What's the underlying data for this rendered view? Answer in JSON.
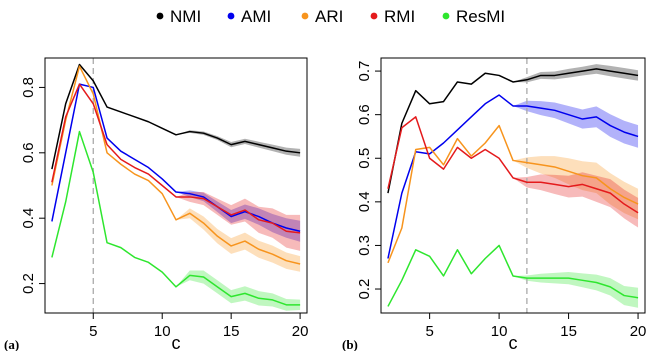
{
  "legend": {
    "items": [
      {
        "label": "NMI",
        "color": "#000000"
      },
      {
        "label": "AMI",
        "color": "#0000ee"
      },
      {
        "label": "ARI",
        "color": "#f7941d"
      },
      {
        "label": "RMI",
        "color": "#e41a1c"
      },
      {
        "label": "ResMI",
        "color": "#2ee62e"
      }
    ]
  },
  "chart_data": [
    {
      "type": "line",
      "panel_label": "(a)",
      "xlabel": "c",
      "x": [
        2,
        3,
        4,
        5,
        6,
        7,
        8,
        9,
        10,
        11,
        12,
        13,
        14,
        15,
        16,
        17,
        18,
        19,
        20
      ],
      "xticks": [
        5,
        10,
        15,
        20
      ],
      "yticks": [
        0.2,
        0.4,
        0.6,
        0.8
      ],
      "xlim": [
        1.5,
        20.5
      ],
      "ylim": [
        0.11,
        0.89
      ],
      "vline": 5,
      "grid": false,
      "legend_position": "top",
      "series": [
        {
          "name": "NMI",
          "color": "#000000",
          "values": [
            0.55,
            0.75,
            0.87,
            0.82,
            0.74,
            0.725,
            0.71,
            0.695,
            0.675,
            0.655,
            0.665,
            0.66,
            0.645,
            0.625,
            0.635,
            0.625,
            0.615,
            0.605,
            0.6
          ],
          "band": [
            0,
            0,
            0,
            0,
            0,
            0,
            0,
            0,
            0,
            0,
            0.004,
            0.005,
            0.006,
            0.008,
            0.008,
            0.009,
            0.01,
            0.011,
            0.012
          ]
        },
        {
          "name": "AMI",
          "color": "#0000ee",
          "values": [
            0.39,
            0.6,
            0.81,
            0.8,
            0.645,
            0.605,
            0.58,
            0.555,
            0.52,
            0.48,
            0.475,
            0.465,
            0.435,
            0.405,
            0.42,
            0.405,
            0.385,
            0.37,
            0.36
          ],
          "band": [
            0,
            0,
            0,
            0,
            0,
            0,
            0,
            0,
            0,
            0,
            0.01,
            0.013,
            0.016,
            0.02,
            0.022,
            0.025,
            0.028,
            0.03,
            0.032
          ]
        },
        {
          "name": "ARI",
          "color": "#f7941d",
          "values": [
            0.5,
            0.7,
            0.865,
            0.78,
            0.6,
            0.565,
            0.535,
            0.515,
            0.475,
            0.395,
            0.415,
            0.385,
            0.345,
            0.315,
            0.33,
            0.305,
            0.29,
            0.27,
            0.26
          ],
          "band": [
            0,
            0,
            0,
            0,
            0,
            0,
            0,
            0,
            0,
            0,
            0.015,
            0.02,
            0.022,
            0.024,
            0.026,
            0.026,
            0.026,
            0.025,
            0.024
          ]
        },
        {
          "name": "RMI",
          "color": "#e41a1c",
          "values": [
            0.51,
            0.71,
            0.81,
            0.75,
            0.625,
            0.58,
            0.555,
            0.535,
            0.5,
            0.465,
            0.465,
            0.46,
            0.435,
            0.41,
            0.425,
            0.395,
            0.385,
            0.36,
            0.355
          ],
          "band": [
            0,
            0,
            0,
            0,
            0,
            0,
            0,
            0,
            0,
            0,
            0.015,
            0.02,
            0.025,
            0.03,
            0.035,
            0.04,
            0.045,
            0.05,
            0.055
          ]
        },
        {
          "name": "ResMI",
          "color": "#2ee62e",
          "values": [
            0.28,
            0.45,
            0.665,
            0.54,
            0.325,
            0.31,
            0.28,
            0.265,
            0.235,
            0.19,
            0.225,
            0.22,
            0.19,
            0.16,
            0.17,
            0.155,
            0.15,
            0.135,
            0.135
          ],
          "band": [
            0,
            0,
            0,
            0,
            0,
            0,
            0,
            0,
            0,
            0,
            0.015,
            0.02,
            0.02,
            0.02,
            0.022,
            0.022,
            0.02,
            0.018,
            0.016
          ]
        }
      ]
    },
    {
      "type": "line",
      "panel_label": "(b)",
      "xlabel": "c",
      "x": [
        2,
        3,
        4,
        5,
        6,
        7,
        8,
        9,
        10,
        11,
        12,
        13,
        14,
        15,
        16,
        17,
        18,
        19,
        20
      ],
      "xticks": [
        5,
        10,
        15,
        20
      ],
      "yticks": [
        0.2,
        0.3,
        0.4,
        0.5,
        0.6,
        0.7
      ],
      "xlim": [
        1.5,
        20.5
      ],
      "ylim": [
        0.145,
        0.73
      ],
      "vline": 12,
      "grid": false,
      "legend_position": "top",
      "series": [
        {
          "name": "NMI",
          "color": "#000000",
          "values": [
            0.42,
            0.58,
            0.655,
            0.625,
            0.63,
            0.675,
            0.67,
            0.695,
            0.69,
            0.675,
            0.68,
            0.69,
            0.69,
            0.695,
            0.7,
            0.705,
            0.7,
            0.695,
            0.69
          ],
          "band": [
            0,
            0,
            0,
            0,
            0,
            0,
            0,
            0,
            0,
            0,
            0.006,
            0.008,
            0.009,
            0.01,
            0.01,
            0.011,
            0.012,
            0.012,
            0.012
          ]
        },
        {
          "name": "AMI",
          "color": "#0000ee",
          "values": [
            0.27,
            0.42,
            0.515,
            0.51,
            0.535,
            0.565,
            0.595,
            0.625,
            0.645,
            0.62,
            0.62,
            0.615,
            0.61,
            0.6,
            0.59,
            0.595,
            0.575,
            0.56,
            0.55
          ],
          "band": [
            0,
            0,
            0,
            0,
            0,
            0,
            0,
            0,
            0,
            0,
            0.012,
            0.016,
            0.018,
            0.02,
            0.022,
            0.024,
            0.026,
            0.026,
            0.026
          ]
        },
        {
          "name": "ARI",
          "color": "#f7941d",
          "values": [
            0.26,
            0.34,
            0.52,
            0.525,
            0.485,
            0.545,
            0.505,
            0.535,
            0.575,
            0.495,
            0.49,
            0.485,
            0.48,
            0.47,
            0.46,
            0.455,
            0.43,
            0.41,
            0.395
          ],
          "band": [
            0,
            0,
            0,
            0,
            0,
            0,
            0,
            0,
            0,
            0,
            0.012,
            0.02,
            0.025,
            0.03,
            0.033,
            0.035,
            0.036,
            0.036,
            0.035
          ]
        },
        {
          "name": "RMI",
          "color": "#e41a1c",
          "values": [
            0.43,
            0.57,
            0.595,
            0.5,
            0.475,
            0.525,
            0.5,
            0.52,
            0.5,
            0.455,
            0.445,
            0.445,
            0.44,
            0.435,
            0.44,
            0.43,
            0.42,
            0.395,
            0.375
          ],
          "band": [
            0,
            0,
            0,
            0,
            0,
            0,
            0,
            0,
            0,
            0,
            0.012,
            0.018,
            0.022,
            0.025,
            0.028,
            0.03,
            0.032,
            0.033,
            0.034
          ]
        },
        {
          "name": "ResMI",
          "color": "#2ee62e",
          "values": [
            0.16,
            0.22,
            0.29,
            0.275,
            0.23,
            0.29,
            0.235,
            0.27,
            0.3,
            0.23,
            0.225,
            0.225,
            0.225,
            0.225,
            0.22,
            0.215,
            0.205,
            0.185,
            0.18
          ],
          "band": [
            0,
            0,
            0,
            0,
            0,
            0,
            0,
            0,
            0,
            0,
            0.006,
            0.01,
            0.012,
            0.014,
            0.016,
            0.018,
            0.02,
            0.022,
            0.023
          ]
        }
      ]
    }
  ]
}
